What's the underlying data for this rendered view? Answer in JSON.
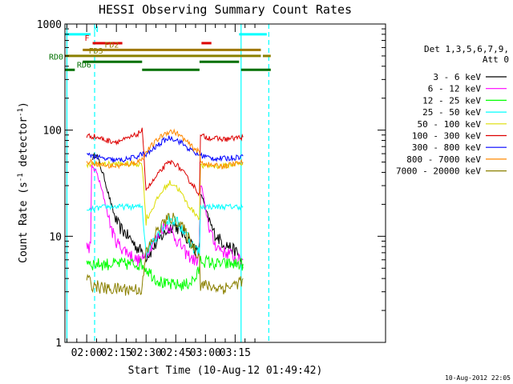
{
  "chart_data": {
    "type": "line",
    "title": "HESSI Observing Summary Count Rates",
    "xlabel": "Start Time (10-Aug-12 01:49:42)",
    "ylabel_main": "Count Rate (s",
    "ylabel_sup1": "-1",
    "ylabel_mid": " detector",
    "ylabel_sup2": "-1",
    "ylabel_end": ")",
    "yscale": "log",
    "xlim_min": [
      -1,
      161
    ],
    "ylim": [
      1,
      1000
    ],
    "x_ticks": [
      {
        "min": 10,
        "label": "02:00"
      },
      {
        "min": 25,
        "label": "02:15"
      },
      {
        "min": 40,
        "label": "02:30"
      },
      {
        "min": 55,
        "label": "02:45"
      },
      {
        "min": 70,
        "label": "03:00"
      },
      {
        "min": 85,
        "label": "03:15"
      }
    ],
    "y_ticks": [
      {
        "value": 1,
        "label": "1"
      },
      {
        "value": 10,
        "label": "10"
      },
      {
        "value": 100,
        "label": "100"
      },
      {
        "value": 1000,
        "label": "1000"
      }
    ],
    "legend_header": [
      "Det 1,3,5,6,7,9,",
      "Att 0"
    ],
    "timestamp": "10-Aug-2012 22:05",
    "flag_bars": [
      {
        "label": "N",
        "color": "#00ffff",
        "level": 800,
        "segments": [
          [
            -1,
            12
          ],
          [
            87,
            101
          ]
        ]
      },
      {
        "label": "F",
        "color": "#dd0000",
        "level": 660,
        "segments": [
          [
            13,
            28
          ],
          [
            68,
            73
          ]
        ]
      },
      {
        "label": "FD2",
        "color": "#a07800",
        "level": 570,
        "segments": [
          [
            8,
            98
          ]
        ]
      },
      {
        "label": "FD3",
        "color": "#8b8000",
        "level": 500,
        "segments": [
          [
            -1,
            98
          ],
          [
            99,
            103
          ]
        ]
      },
      {
        "label": "RD0",
        "color": "#007000",
        "level": 440,
        "segments": [
          [
            8,
            38
          ],
          [
            67,
            87
          ]
        ]
      },
      {
        "label": "RD6",
        "color": "#007000",
        "level": 370,
        "segments": [
          [
            -1,
            4
          ],
          [
            38,
            67
          ],
          [
            88,
            103
          ]
        ]
      }
    ],
    "vertical_lines": [
      {
        "min": 0,
        "color": "#00ffff",
        "style": "solid"
      },
      {
        "min": 14,
        "color": "#00ffff",
        "style": "dashed"
      },
      {
        "min": 88,
        "color": "#00ffff",
        "style": "solid"
      },
      {
        "min": 102,
        "color": "#00ffff",
        "style": "dashed"
      }
    ],
    "series": [
      {
        "name": "3 - 6 keV",
        "color": "#000000",
        "x": [
          13,
          15,
          17,
          19,
          21,
          23,
          25,
          27,
          29,
          31,
          33,
          35,
          37,
          39,
          40,
          42,
          44,
          46,
          48,
          50,
          52,
          54,
          56,
          58,
          60,
          62,
          64,
          66,
          67,
          68,
          70,
          72,
          74,
          76,
          78,
          80,
          82,
          84,
          86,
          88,
          89
        ],
        "y": [
          55,
          60,
          45,
          35,
          25,
          18,
          14,
          12,
          11,
          10,
          9,
          8,
          7.5,
          7,
          6.5,
          7,
          8,
          9,
          10,
          11,
          12,
          13,
          12,
          11,
          10,
          9,
          8,
          7,
          8,
          25,
          18,
          14,
          11,
          10,
          9,
          8.5,
          8,
          7.5,
          7,
          6,
          5
        ]
      },
      {
        "name": "6 - 12 keV",
        "color": "#ff00ff",
        "x": [
          10,
          12,
          13,
          15,
          17,
          19,
          21,
          23,
          25,
          27,
          29,
          31,
          33,
          35,
          37,
          39,
          40,
          42,
          44,
          46,
          48,
          50,
          52,
          54,
          56,
          58,
          60,
          62,
          64,
          66,
          67,
          68,
          70,
          72,
          74,
          76,
          78,
          80,
          82,
          84,
          86,
          88,
          89
        ],
        "y": [
          8,
          8,
          45,
          40,
          30,
          22,
          15,
          11,
          9,
          8,
          7.5,
          7,
          6.5,
          6,
          6,
          6,
          7,
          8,
          9,
          10,
          12,
          13,
          12,
          10,
          9,
          8,
          7,
          6.5,
          6,
          6,
          7,
          30,
          18,
          12,
          9,
          8,
          7.5,
          7,
          7,
          6.5,
          6,
          6,
          6
        ]
      },
      {
        "name": "12 - 25 keV",
        "color": "#00ff00",
        "x": [
          10,
          13,
          20,
          30,
          38,
          40,
          45,
          50,
          55,
          60,
          65,
          67,
          68,
          75,
          80,
          85,
          89
        ],
        "y": [
          6,
          5.5,
          5.5,
          5.5,
          5.5,
          5,
          4,
          3.5,
          3.5,
          3.5,
          4,
          5,
          6,
          5.5,
          5.5,
          5.5,
          5.5
        ]
      },
      {
        "name": "25 - 50 keV",
        "color": "#00ffff",
        "x": [
          10,
          13,
          20,
          30,
          38,
          40,
          43,
          46,
          49,
          52,
          55,
          58,
          61,
          64,
          67,
          68,
          75,
          80,
          85,
          89
        ],
        "y": [
          17,
          18,
          19,
          19,
          19,
          7,
          9,
          11,
          13,
          14.5,
          14,
          12,
          10,
          8,
          7,
          19,
          19,
          19,
          19,
          19
        ]
      },
      {
        "name": "50 - 100 keV",
        "color": "#dddd00",
        "x": [
          10,
          13,
          20,
          30,
          38,
          40,
          43,
          46,
          49,
          52,
          55,
          58,
          61,
          64,
          67,
          68,
          75,
          80,
          85,
          89
        ],
        "y": [
          46,
          48,
          48,
          48,
          48,
          14,
          18,
          23,
          28,
          32,
          30,
          25,
          20,
          17,
          15,
          46,
          46,
          46,
          48,
          48
        ]
      },
      {
        "name": "100 - 300 keV",
        "color": "#dd0000",
        "x": [
          10,
          13,
          16,
          20,
          25,
          30,
          35,
          38,
          40,
          43,
          46,
          49,
          52,
          55,
          58,
          61,
          64,
          67,
          68,
          72,
          76,
          80,
          84,
          89
        ],
        "y": [
          88,
          88,
          85,
          80,
          78,
          82,
          90,
          100,
          28,
          32,
          38,
          45,
          50,
          48,
          42,
          35,
          30,
          25,
          88,
          85,
          83,
          82,
          84,
          86
        ]
      },
      {
        "name": "300 - 800 keV",
        "color": "#0000ff",
        "x": [
          10,
          13,
          16,
          20,
          25,
          30,
          35,
          38,
          40,
          43,
          46,
          49,
          52,
          55,
          58,
          61,
          64,
          67,
          68,
          72,
          76,
          80,
          84,
          89
        ],
        "y": [
          58,
          58,
          55,
          53,
          52,
          53,
          56,
          60,
          58,
          65,
          72,
          80,
          85,
          82,
          76,
          68,
          62,
          58,
          58,
          55,
          54,
          54,
          55,
          57
        ]
      },
      {
        "name": "800 - 7000 keV",
        "color": "#ff8800",
        "x": [
          10,
          13,
          16,
          20,
          25,
          30,
          35,
          38,
          40,
          43,
          46,
          49,
          52,
          55,
          58,
          61,
          64,
          67,
          68,
          72,
          76,
          80,
          84,
          89
        ],
        "y": [
          50,
          50,
          48,
          46,
          46,
          47,
          50,
          53,
          62,
          72,
          82,
          92,
          98,
          95,
          86,
          76,
          68,
          62,
          50,
          47,
          46,
          46,
          48,
          50
        ]
      },
      {
        "name": "7000 - 20000 keV",
        "color": "#8b8000",
        "x": [
          10,
          13,
          20,
          30,
          38,
          40,
          43,
          46,
          49,
          52,
          55,
          58,
          61,
          64,
          67,
          68,
          75,
          80,
          85,
          89
        ],
        "y": [
          4,
          3.5,
          3.2,
          3.2,
          3.2,
          7,
          9,
          11.5,
          13.5,
          15,
          14.5,
          12.5,
          10,
          8,
          6.5,
          3.5,
          3.3,
          3.3,
          3.5,
          4
        ]
      }
    ]
  }
}
